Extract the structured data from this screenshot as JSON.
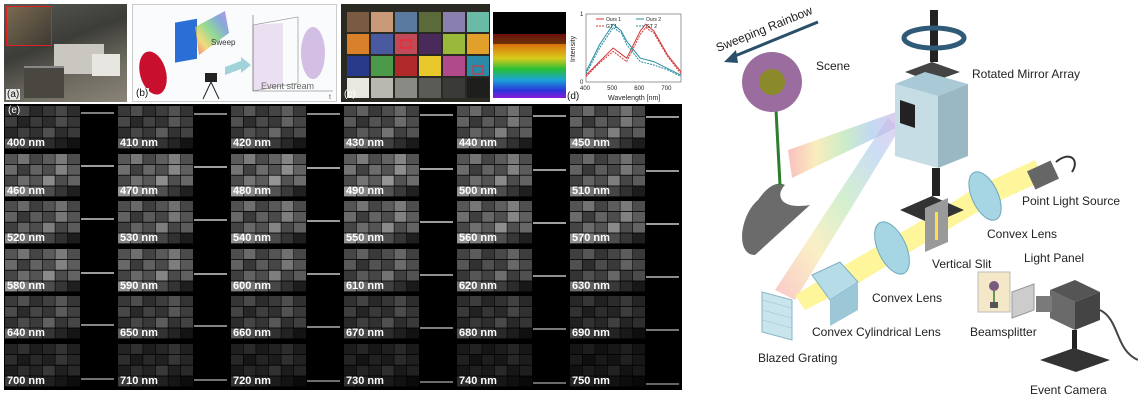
{
  "panel_labels": {
    "a": "(a)",
    "b": "(b)",
    "c": "(c)",
    "d": "(d)",
    "e": "(e)"
  },
  "panel_b": {
    "sweep_label": "Sweep",
    "event_stream_label": "Event stream",
    "axis_t": "t"
  },
  "panel_d": {
    "ylabel": "Intensity",
    "xlabel": "Wavelength [nm]",
    "legend": [
      "Ours 1",
      "Ours 2",
      "GT 1",
      "GT 2"
    ],
    "xticks": [
      "400",
      "500",
      "600",
      "700"
    ],
    "yticks": [
      "0",
      "1"
    ]
  },
  "chart_data": {
    "type": "line",
    "xlabel": "Wavelength [nm]",
    "ylabel": "Intensity",
    "xlim": [
      400,
      750
    ],
    "ylim": [
      0,
      1
    ],
    "series": [
      {
        "name": "Ours 1",
        "x": [
          400,
          450,
          500,
          550,
          600,
          620,
          650,
          700,
          750
        ],
        "y": [
          0.1,
          0.3,
          0.5,
          0.35,
          0.75,
          0.85,
          0.75,
          0.4,
          0.15
        ]
      },
      {
        "name": "GT 1",
        "x": [
          400,
          450,
          500,
          550,
          600,
          620,
          650,
          700,
          750
        ],
        "y": [
          0.08,
          0.28,
          0.45,
          0.3,
          0.7,
          0.8,
          0.72,
          0.38,
          0.12
        ]
      },
      {
        "name": "Ours 2",
        "x": [
          400,
          450,
          500,
          530,
          550,
          600,
          650,
          700,
          750
        ],
        "y": [
          0.15,
          0.55,
          0.85,
          0.75,
          0.6,
          0.35,
          0.3,
          0.2,
          0.1
        ]
      },
      {
        "name": "GT 2",
        "x": [
          400,
          450,
          500,
          530,
          550,
          600,
          650,
          700,
          750
        ],
        "y": [
          0.12,
          0.5,
          0.8,
          0.72,
          0.55,
          0.3,
          0.25,
          0.18,
          0.08
        ]
      }
    ]
  },
  "wavelengths": [
    "400 nm",
    "410 nm",
    "420 nm",
    "430 nm",
    "440 nm",
    "450 nm",
    "460 nm",
    "470 nm",
    "480 nm",
    "490 nm",
    "500 nm",
    "510 nm",
    "520 nm",
    "530 nm",
    "540 nm",
    "550 nm",
    "560 nm",
    "570 nm",
    "580 nm",
    "590 nm",
    "600 nm",
    "610 nm",
    "620 nm",
    "630 nm",
    "640 nm",
    "650 nm",
    "660 nm",
    "670 nm",
    "680 nm",
    "690 nm",
    "700 nm",
    "710 nm",
    "720 nm",
    "730 nm",
    "740 nm",
    "750 nm"
  ],
  "brightness": [
    0.35,
    0.4,
    0.45,
    0.5,
    0.55,
    0.55,
    0.6,
    0.62,
    0.65,
    0.65,
    0.6,
    0.55,
    0.55,
    0.55,
    0.58,
    0.6,
    0.62,
    0.6,
    0.6,
    0.58,
    0.55,
    0.5,
    0.48,
    0.45,
    0.42,
    0.4,
    0.38,
    0.35,
    0.32,
    0.28,
    0.25,
    0.25,
    0.22,
    0.2,
    0.18,
    0.15
  ],
  "setup": {
    "sweeping_rainbow": "Sweeping Rainbow",
    "scene": "Scene",
    "rotated_mirror_array": "Rotated Mirror Array",
    "point_light_source": "Point Light Source",
    "convex_lens_1": "Convex Lens",
    "vertical_slit": "Vertical Slit",
    "light_panel": "Light Panel",
    "convex_lens_2": "Convex Lens",
    "convex_cylindrical_lens": "Convex Cylindrical Lens",
    "beamsplitter": "Beamsplitter",
    "blazed_grating": "Blazed Grating",
    "event_camera": "Event Camera"
  }
}
